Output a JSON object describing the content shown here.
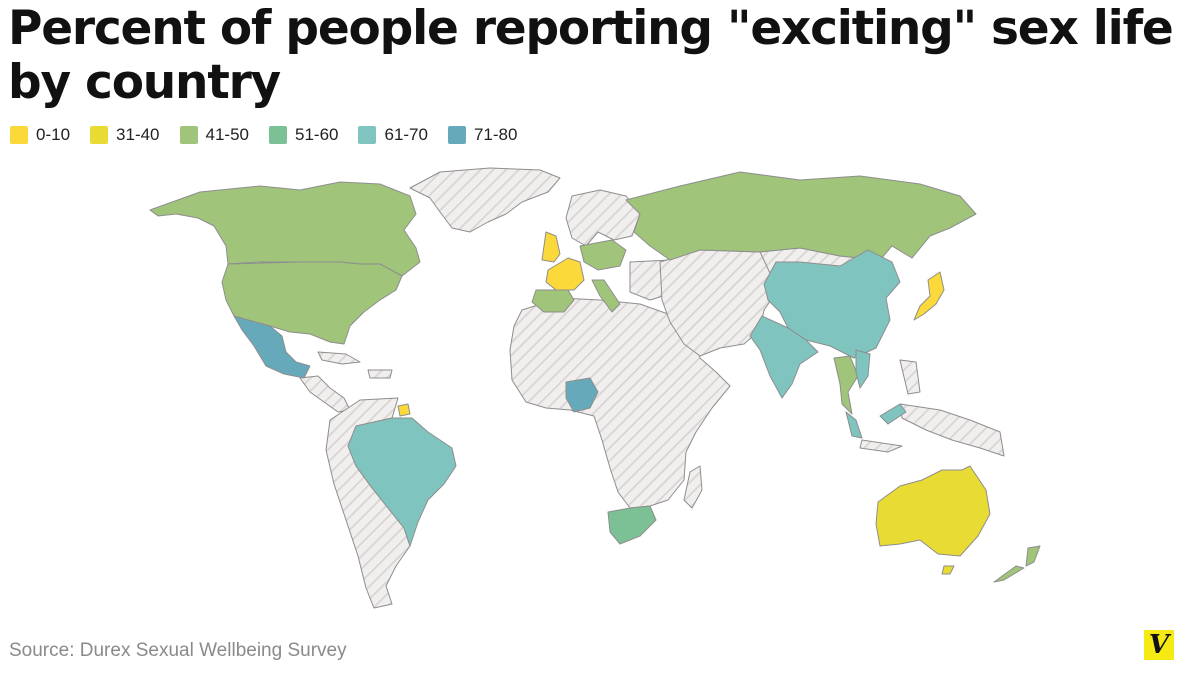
{
  "title": "Percent of people reporting \"exciting\" sex life by country",
  "legend": [
    {
      "label": "0-10",
      "color": "#fbd93a"
    },
    {
      "label": "31-40",
      "color": "#e8dc34"
    },
    {
      "label": "41-50",
      "color": "#9fc47a"
    },
    {
      "label": "51-60",
      "color": "#7cc195"
    },
    {
      "label": "61-70",
      "color": "#7fc4bf"
    },
    {
      "label": "71-80",
      "color": "#66a9ba"
    }
  ],
  "no_data_pattern": "hatched-gray",
  "countries": [
    {
      "name": "Canada",
      "bin": "41-50"
    },
    {
      "name": "United States",
      "bin": "41-50"
    },
    {
      "name": "Mexico",
      "bin": "71-80"
    },
    {
      "name": "Brazil",
      "bin": "61-70"
    },
    {
      "name": "French Guiana",
      "bin": "0-10"
    },
    {
      "name": "United Kingdom",
      "bin": "0-10"
    },
    {
      "name": "France",
      "bin": "0-10"
    },
    {
      "name": "Spain",
      "bin": "41-50"
    },
    {
      "name": "Portugal",
      "bin": "41-50"
    },
    {
      "name": "Italy",
      "bin": "41-50"
    },
    {
      "name": "Germany",
      "bin": "41-50"
    },
    {
      "name": "Poland",
      "bin": "41-50"
    },
    {
      "name": "Russia",
      "bin": "41-50"
    },
    {
      "name": "Nigeria",
      "bin": "71-80"
    },
    {
      "name": "South Africa",
      "bin": "51-60"
    },
    {
      "name": "China",
      "bin": "61-70"
    },
    {
      "name": "India",
      "bin": "61-70"
    },
    {
      "name": "Thailand",
      "bin": "41-50"
    },
    {
      "name": "Vietnam",
      "bin": "61-70"
    },
    {
      "name": "Malaysia",
      "bin": "61-70"
    },
    {
      "name": "Japan",
      "bin": "0-10"
    },
    {
      "name": "Australia",
      "bin": "31-40"
    },
    {
      "name": "New Zealand",
      "bin": "41-50"
    }
  ],
  "source": "Source: Durex Sexual Wellbeing Survey",
  "logo": "V"
}
